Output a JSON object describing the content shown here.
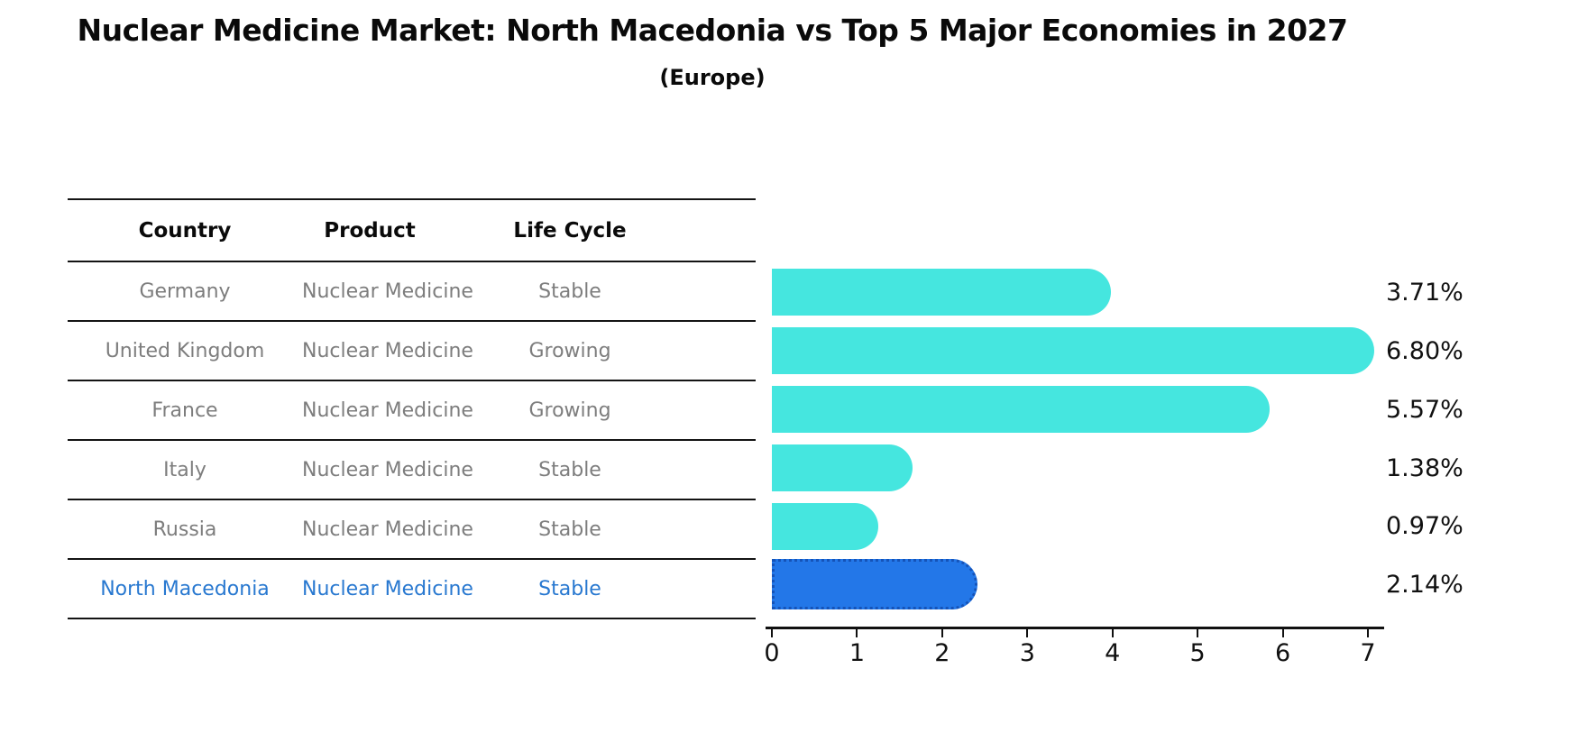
{
  "header": {
    "title": "Nuclear Medicine Market: North Macedonia vs Top 5 Major Economies in 2027",
    "subtitle": "(Europe)"
  },
  "table": {
    "columns": [
      "Country",
      "Product",
      "Life Cycle"
    ],
    "rows": [
      {
        "country": "Germany",
        "product": "Nuclear Medicine",
        "life_cycle": "Stable",
        "highlighted": false
      },
      {
        "country": "United Kingdom",
        "product": "Nuclear Medicine",
        "life_cycle": "Growing",
        "highlighted": false
      },
      {
        "country": "France",
        "product": "Nuclear Medicine",
        "life_cycle": "Growing",
        "highlighted": false
      },
      {
        "country": "Italy",
        "product": "Nuclear Medicine",
        "life_cycle": "Stable",
        "highlighted": false
      },
      {
        "country": "Russia",
        "product": "Nuclear Medicine",
        "life_cycle": "Stable",
        "highlighted": false
      },
      {
        "country": "North Macedonia",
        "product": "Nuclear Medicine",
        "life_cycle": "Stable",
        "highlighted": true
      }
    ]
  },
  "chart_data": {
    "type": "bar",
    "orientation": "horizontal",
    "title": "Nuclear Medicine Market: North Macedonia vs Top 5 Major Economies in 2027",
    "subtitle": "(Europe)",
    "categories": [
      "Germany",
      "United Kingdom",
      "France",
      "Italy",
      "Russia",
      "North Macedonia"
    ],
    "values": [
      3.71,
      6.8,
      5.57,
      1.38,
      0.97,
      2.14
    ],
    "value_labels": [
      "3.71%",
      "6.80%",
      "5.57%",
      "1.38%",
      "0.97%",
      "2.14%"
    ],
    "x_ticks": [
      0,
      1,
      2,
      3,
      4,
      5,
      6,
      7
    ],
    "xlim": [
      0,
      7
    ],
    "xlabel": "",
    "ylabel": "",
    "grid": false,
    "legend": false,
    "bar_color": "#45e6df",
    "highlight_index": 5,
    "highlight_color": "#2377e8",
    "highlight_edge_color": "#1553b8",
    "highlight_edge_style": "dotted",
    "text_color_default": "#7d7d7d",
    "text_color_highlight": "#2878d0"
  }
}
